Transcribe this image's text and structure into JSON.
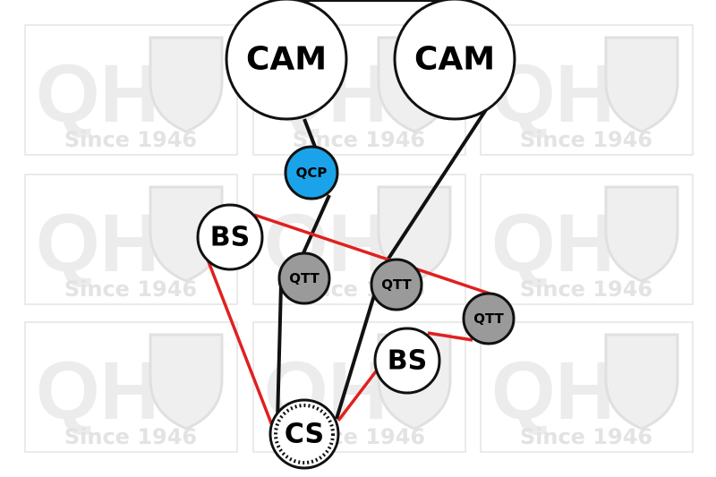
{
  "watermark": {
    "logo": "QH",
    "caption": "Since 1946"
  },
  "nodes": [
    {
      "label": "CAM"
    },
    {
      "label": "CAM"
    },
    {
      "label": "QCP"
    },
    {
      "label": "BS"
    },
    {
      "label": "QTT"
    },
    {
      "label": "QTT"
    },
    {
      "label": "QTT"
    },
    {
      "label": "BS"
    },
    {
      "label": "CS"
    }
  ]
}
